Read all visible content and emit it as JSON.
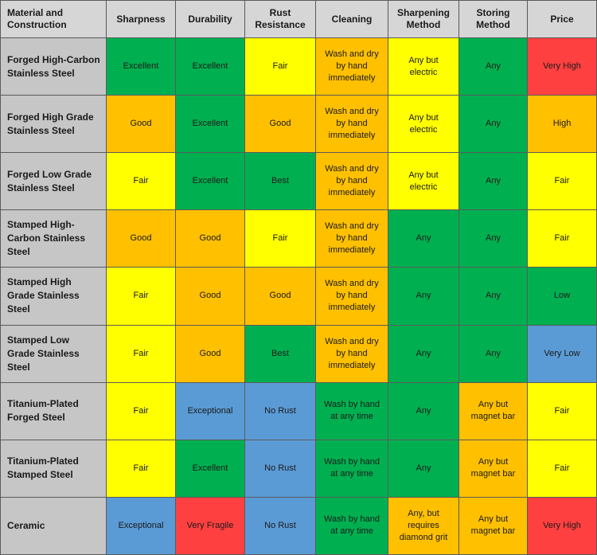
{
  "colors": {
    "Excellent": "#00b050",
    "Exceptional": "#5b9bd5",
    "Best": "#00b050",
    "Good": "#ffc000",
    "Fair": "#ffff00",
    "Very Fragile": "#ff4040",
    "No Rust": "#5b9bd5",
    "Very High": "#ff4040",
    "High": "#ffc000",
    "Low": "#00b050",
    "Very Low": "#5b9bd5",
    "Any": "#00b050",
    "header": "#d6d6d6",
    "rowheader": "#c6c6c6"
  },
  "headers": [
    "Material and\nConstruction",
    "Sharpness",
    "Durability",
    "Rust\nResistance",
    "Cleaning",
    "Sharpening\nMethod",
    "Storing\nMethod",
    "Price"
  ],
  "rows": [
    {
      "material": "Forged High-Carbon\nStainless Steel",
      "cells": [
        {
          "text": "Excellent",
          "color": "#00b050"
        },
        {
          "text": "Excellent",
          "color": "#00b050"
        },
        {
          "text": "Fair",
          "color": "#ffff00"
        },
        {
          "text": "Wash and dry\nby hand\nimmediately",
          "color": "#ffc000"
        },
        {
          "text": "Any but\nelectric",
          "color": "#ffff00"
        },
        {
          "text": "Any",
          "color": "#00b050"
        },
        {
          "text": "Very High",
          "color": "#ff4040"
        }
      ]
    },
    {
      "material": "Forged High Grade\nStainless Steel",
      "cells": [
        {
          "text": "Good",
          "color": "#ffc000"
        },
        {
          "text": "Excellent",
          "color": "#00b050"
        },
        {
          "text": "Good",
          "color": "#ffc000"
        },
        {
          "text": "Wash and dry\nby hand\nimmediately",
          "color": "#ffc000"
        },
        {
          "text": "Any but\nelectric",
          "color": "#ffff00"
        },
        {
          "text": "Any",
          "color": "#00b050"
        },
        {
          "text": "High",
          "color": "#ffc000"
        }
      ]
    },
    {
      "material": "Forged Low Grade\nStainless Steel",
      "cells": [
        {
          "text": "Fair",
          "color": "#ffff00"
        },
        {
          "text": "Excellent",
          "color": "#00b050"
        },
        {
          "text": "Best",
          "color": "#00b050"
        },
        {
          "text": "Wash and dry\nby hand\nimmediately",
          "color": "#ffc000"
        },
        {
          "text": "Any but\nelectric",
          "color": "#ffff00"
        },
        {
          "text": "Any",
          "color": "#00b050"
        },
        {
          "text": "Fair",
          "color": "#ffff00"
        }
      ]
    },
    {
      "material": "Stamped High-\nCarbon Stainless\nSteel",
      "cells": [
        {
          "text": "Good",
          "color": "#ffc000"
        },
        {
          "text": "Good",
          "color": "#ffc000"
        },
        {
          "text": "Fair",
          "color": "#ffff00"
        },
        {
          "text": "Wash and dry\nby hand\nimmediately",
          "color": "#ffc000"
        },
        {
          "text": "Any",
          "color": "#00b050"
        },
        {
          "text": "Any",
          "color": "#00b050"
        },
        {
          "text": "Fair",
          "color": "#ffff00"
        }
      ]
    },
    {
      "material": "Stamped High\nGrade Stainless\nSteel",
      "cells": [
        {
          "text": "Fair",
          "color": "#ffff00"
        },
        {
          "text": "Good",
          "color": "#ffc000"
        },
        {
          "text": "Good",
          "color": "#ffc000"
        },
        {
          "text": "Wash and dry\nby hand\nimmediately",
          "color": "#ffc000"
        },
        {
          "text": "Any",
          "color": "#00b050"
        },
        {
          "text": "Any",
          "color": "#00b050"
        },
        {
          "text": "Low",
          "color": "#00b050"
        }
      ]
    },
    {
      "material": "Stamped Low\nGrade Stainless\nSteel",
      "cells": [
        {
          "text": "Fair",
          "color": "#ffff00"
        },
        {
          "text": "Good",
          "color": "#ffc000"
        },
        {
          "text": "Best",
          "color": "#00b050"
        },
        {
          "text": "Wash and dry\nby hand\nimmediately",
          "color": "#ffc000"
        },
        {
          "text": "Any",
          "color": "#00b050"
        },
        {
          "text": "Any",
          "color": "#00b050"
        },
        {
          "text": "Very Low",
          "color": "#5b9bd5"
        }
      ]
    },
    {
      "material": "Titanium-Plated\nForged Steel",
      "cells": [
        {
          "text": "Fair",
          "color": "#ffff00"
        },
        {
          "text": "Exceptional",
          "color": "#5b9bd5"
        },
        {
          "text": "No Rust",
          "color": "#5b9bd5"
        },
        {
          "text": "Wash by hand\nat any time",
          "color": "#00b050"
        },
        {
          "text": "Any",
          "color": "#00b050"
        },
        {
          "text": "Any but\nmagnet bar",
          "color": "#ffc000"
        },
        {
          "text": "Fair",
          "color": "#ffff00"
        }
      ]
    },
    {
      "material": "Titanium-Plated\nStamped Steel",
      "cells": [
        {
          "text": "Fair",
          "color": "#ffff00"
        },
        {
          "text": "Excellent",
          "color": "#00b050"
        },
        {
          "text": "No Rust",
          "color": "#5b9bd5"
        },
        {
          "text": "Wash by hand\nat any time",
          "color": "#00b050"
        },
        {
          "text": "Any",
          "color": "#00b050"
        },
        {
          "text": "Any but\nmagnet bar",
          "color": "#ffc000"
        },
        {
          "text": "Fair",
          "color": "#ffff00"
        }
      ]
    },
    {
      "material": "Ceramic",
      "cells": [
        {
          "text": "Exceptional",
          "color": "#5b9bd5"
        },
        {
          "text": "Very Fragile",
          "color": "#ff4040"
        },
        {
          "text": "No Rust",
          "color": "#5b9bd5"
        },
        {
          "text": "Wash by hand\nat any time",
          "color": "#00b050"
        },
        {
          "text": "Any, but\nrequires\ndiamond grit",
          "color": "#ffc000"
        },
        {
          "text": "Any but\nmagnet bar",
          "color": "#ffc000"
        },
        {
          "text": "Very High",
          "color": "#ff4040"
        }
      ]
    }
  ]
}
